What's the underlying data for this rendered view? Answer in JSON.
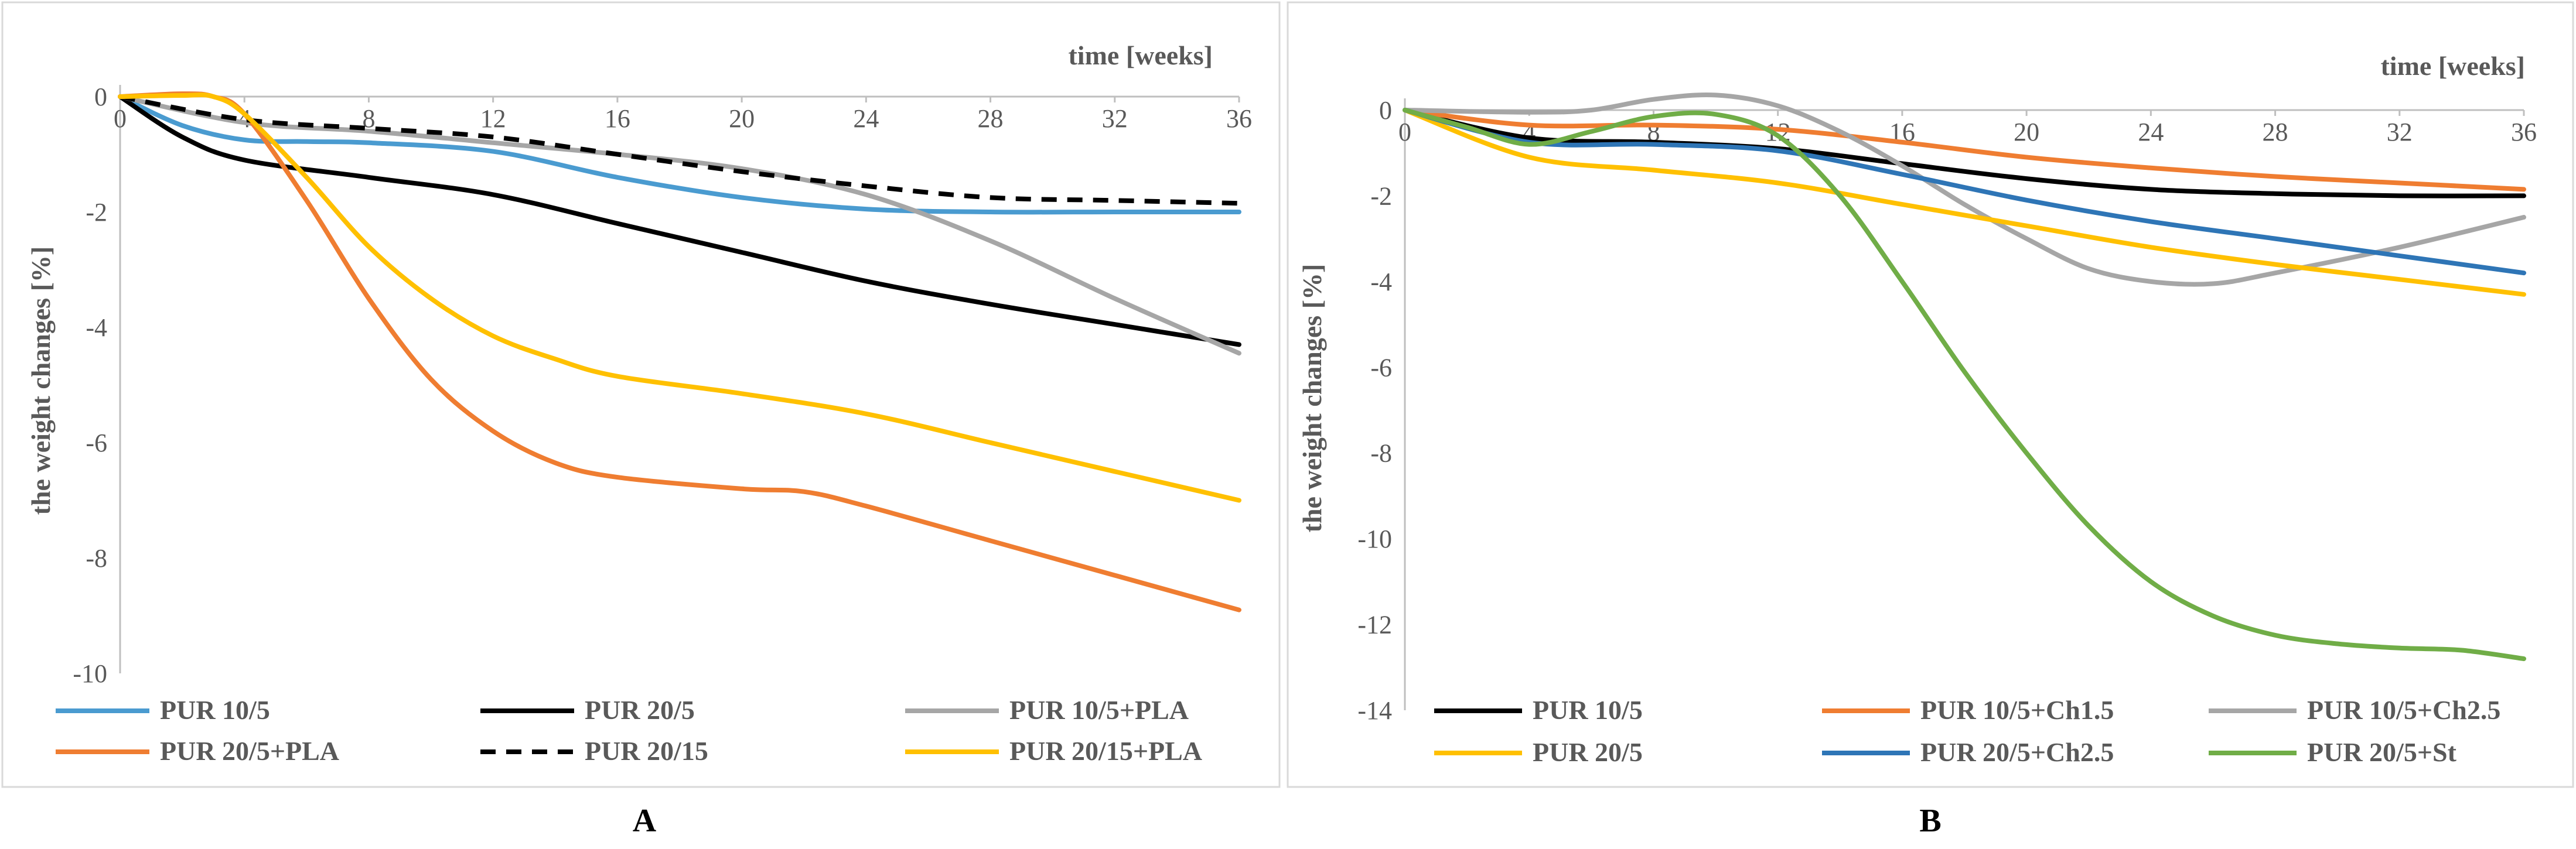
{
  "chart_data": [
    {
      "type": "line",
      "panel_label": "A",
      "xlabel": "time [weeks]",
      "ylabel": "the weight changes [%]",
      "xlim": [
        0,
        36
      ],
      "ylim": [
        -10,
        0
      ],
      "xticks": [
        "0",
        "4",
        "8",
        "12",
        "16",
        "20",
        "24",
        "28",
        "32",
        "36"
      ],
      "yticks": [
        "0",
        "-2",
        "-4",
        "-6",
        "-8",
        "-10"
      ],
      "legend": "bottom",
      "series": [
        {
          "name": "PUR 10/5",
          "color": "#4A9BD0",
          "dash": false,
          "x": [
            0,
            2,
            4,
            6,
            8,
            12,
            16,
            20,
            24,
            28,
            32,
            36
          ],
          "y": [
            0,
            -0.5,
            -0.75,
            -0.78,
            -0.8,
            -0.95,
            -1.4,
            -1.75,
            -1.95,
            -2.0,
            -2.0,
            -2.0
          ]
        },
        {
          "name": "PUR 20/5",
          "color": "#000000",
          "dash": false,
          "x": [
            0,
            2,
            4,
            8,
            12,
            16,
            20,
            24,
            28,
            32,
            36
          ],
          "y": [
            0,
            -0.7,
            -1.1,
            -1.4,
            -1.7,
            -2.2,
            -2.7,
            -3.2,
            -3.6,
            -3.95,
            -4.3
          ]
        },
        {
          "name": "PUR 10/5+PLA",
          "color": "#A6A6A6",
          "dash": false,
          "x": [
            0,
            4,
            8,
            12,
            16,
            20,
            24,
            28,
            32,
            36
          ],
          "y": [
            0,
            -0.45,
            -0.6,
            -0.8,
            -1.0,
            -1.25,
            -1.7,
            -2.5,
            -3.5,
            -4.45
          ]
        },
        {
          "name": "PUR 20/5+PLA",
          "color": "#EF7D31",
          "dash": false,
          "x": [
            0,
            2,
            3,
            4,
            6,
            8,
            10,
            12,
            14,
            16,
            20,
            22,
            24,
            28,
            32,
            36
          ],
          "y": [
            0,
            0.05,
            0.0,
            -0.3,
            -1.8,
            -3.5,
            -4.9,
            -5.8,
            -6.35,
            -6.6,
            -6.8,
            -6.85,
            -7.1,
            -7.7,
            -8.3,
            -8.9
          ]
        },
        {
          "name": "PUR 20/15",
          "color": "#000000",
          "dash": true,
          "x": [
            0,
            4,
            8,
            12,
            16,
            20,
            24,
            28,
            32,
            36
          ],
          "y": [
            0,
            -0.4,
            -0.55,
            -0.7,
            -1.0,
            -1.3,
            -1.55,
            -1.75,
            -1.8,
            -1.85
          ]
        },
        {
          "name": "PUR 20/15+PLA",
          "color": "#FFC000",
          "dash": false,
          "x": [
            0,
            2,
            3,
            4,
            6,
            8,
            10,
            12,
            14,
            16,
            20,
            24,
            28,
            32,
            36
          ],
          "y": [
            0,
            0.02,
            0.0,
            -0.3,
            -1.4,
            -2.6,
            -3.5,
            -4.15,
            -4.55,
            -4.85,
            -5.15,
            -5.5,
            -6.0,
            -6.5,
            -7.0
          ]
        }
      ]
    },
    {
      "type": "line",
      "panel_label": "B",
      "xlabel": "time [weeks]",
      "ylabel": "the weight changes [%]",
      "xlim": [
        0,
        36
      ],
      "ylim": [
        -14,
        0
      ],
      "xticks": [
        "0",
        "4",
        "8",
        "12",
        "16",
        "20",
        "24",
        "28",
        "32",
        "36"
      ],
      "yticks": [
        "0",
        "-2",
        "-4",
        "-6",
        "-8",
        "-10",
        "-12",
        "-14"
      ],
      "legend": "bottom",
      "series": [
        {
          "name": "PUR 10/5",
          "color": "#000000",
          "dash": false,
          "x": [
            0,
            4,
            8,
            12,
            16,
            20,
            24,
            28,
            32,
            36
          ],
          "y": [
            0,
            -0.65,
            -0.75,
            -0.9,
            -1.25,
            -1.6,
            -1.85,
            -1.95,
            -2.0,
            -2.0
          ]
        },
        {
          "name": "PUR 10/5+Ch1.5",
          "color": "#EF7D31",
          "dash": false,
          "x": [
            0,
            4,
            8,
            12,
            16,
            20,
            24,
            28,
            32,
            36
          ],
          "y": [
            0,
            -0.35,
            -0.35,
            -0.45,
            -0.75,
            -1.1,
            -1.35,
            -1.55,
            -1.7,
            -1.85
          ]
        },
        {
          "name": "PUR 10/5+Ch2.5",
          "color": "#A6A6A6",
          "dash": false,
          "x": [
            0,
            4,
            6,
            8,
            10,
            12,
            14,
            16,
            18,
            20,
            22,
            24,
            26,
            28,
            32,
            36
          ],
          "y": [
            0,
            -0.05,
            0.0,
            0.25,
            0.35,
            0.1,
            -0.5,
            -1.3,
            -2.2,
            -3.0,
            -3.7,
            -4.0,
            -4.05,
            -3.8,
            -3.2,
            -2.5
          ]
        },
        {
          "name": "PUR 20/5",
          "color": "#FFC000",
          "dash": false,
          "x": [
            0,
            4,
            8,
            12,
            16,
            20,
            24,
            28,
            32,
            36
          ],
          "y": [
            0,
            -1.1,
            -1.4,
            -1.7,
            -2.2,
            -2.7,
            -3.2,
            -3.6,
            -3.95,
            -4.3
          ]
        },
        {
          "name": "PUR 20/5+Ch2.5",
          "color": "#2E75B6",
          "dash": false,
          "x": [
            0,
            4,
            8,
            12,
            16,
            20,
            24,
            28,
            32,
            36
          ],
          "y": [
            0,
            -0.75,
            -0.8,
            -0.95,
            -1.5,
            -2.1,
            -2.6,
            -3.0,
            -3.4,
            -3.8
          ]
        },
        {
          "name": "PUR 20/5+St",
          "color": "#70AD47",
          "dash": false,
          "x": [
            0,
            2,
            4,
            6,
            8,
            10,
            12,
            14,
            16,
            18,
            20,
            22,
            24,
            26,
            28,
            30,
            32,
            34,
            36
          ],
          "y": [
            0,
            -0.4,
            -0.8,
            -0.5,
            -0.15,
            -0.1,
            -0.6,
            -2.0,
            -4.0,
            -6.1,
            -8.0,
            -9.7,
            -11.0,
            -11.8,
            -12.25,
            -12.45,
            -12.55,
            -12.6,
            -12.8
          ]
        }
      ]
    }
  ]
}
